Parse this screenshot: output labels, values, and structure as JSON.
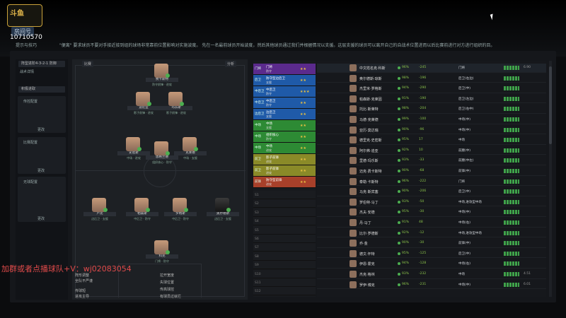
{
  "stream": {
    "logo_text": "斗鱼",
    "room_label": "房间号",
    "room_number": "10710570",
    "overlay_text": "加群或者点播球队+V：wj02083054"
  },
  "tip": {
    "label": "提示与技巧",
    "text": "\"便离\" 要求球员不要对手接近接到组的球场非常靠前位置影响对实施波度。 先在一名最前球员开始波度，然后其他球员通过我们并根据情况以支援。这层支援的球员可以离开自己的自战术位置进而以后比赛前进行对方进行组织的目。"
  },
  "left_panel": {
    "formation": "阵型进阶4-3-2-1 防御",
    "section1": "战术详情",
    "mentality": "积极进取",
    "box1_title": "传控配置",
    "box1_button": "更改",
    "box2_title": "比赛配置",
    "box2_button": "更改",
    "box3_title": "无球配置",
    "box3_button": "更改"
  },
  "pitch": {
    "controls": [
      "分析",
      "比赛"
    ],
    "players": [
      {
        "name": "费卡斯特",
        "role": "防守前锋 · 进攻",
        "dark": false
      },
      {
        "name": "迪尼亚",
        "role": "影子前锋 · 进攻",
        "dark": false
      },
      {
        "name": "玛乐斯",
        "role": "影子前锋 · 进攻",
        "dark": false
      },
      {
        "name": "史密斯",
        "role": "中场 · 进攻",
        "dark": false
      },
      {
        "name": "恩格兰德",
        "role": "组织核心 · 防守",
        "dark": false
      },
      {
        "name": "克莱德",
        "role": "中场 · 支援",
        "dark": false
      },
      {
        "name": "卢克",
        "role": "边后卫 · 支援",
        "dark": false
      },
      {
        "name": "帕森斯",
        "role": "中后卫 · 防守",
        "dark": false
      },
      {
        "name": "罗格斯",
        "role": "中后卫 · 防守",
        "dark": false
      },
      {
        "name": "奥尔德斯",
        "role": "边后卫 · 支援",
        "dark": true
      },
      {
        "name": "科克",
        "role": "门将 · 防守",
        "dark": false
      }
    ],
    "footer": [
      "阵形调整",
      "全队不严谨",
      "传球短",
      "进攻主导",
      "拉开宽度",
      "失球位置",
      "传高球控",
      "有球员过就拦"
    ]
  },
  "tactic_rows": [
    {
      "pos": "门将",
      "role": "门将",
      "duty": "防守",
      "stars": "★★",
      "color": "#5b2a8c"
    },
    {
      "pos": "后卫",
      "role": "防守型边后卫",
      "duty": "支援",
      "stars": "★★",
      "color": "#1f5aa8"
    },
    {
      "pos": "中后卫",
      "role": "中后卫",
      "duty": "防守",
      "stars": "★★★",
      "color": "#1f5aa8"
    },
    {
      "pos": "中后卫",
      "role": "中后卫",
      "duty": "防守",
      "stars": "★★",
      "color": "#1f5aa8"
    },
    {
      "pos": "边后卫",
      "role": "边后卫",
      "duty": "支援",
      "stars": "★★",
      "color": "#1f5aa8"
    },
    {
      "pos": "中场",
      "role": "中场",
      "duty": "支援",
      "stars": "★★",
      "color": "#2d8a34"
    },
    {
      "pos": "中场",
      "role": "组织核心",
      "duty": "防守",
      "stars": "★★",
      "color": "#2d8a34"
    },
    {
      "pos": "中场",
      "role": "中场",
      "duty": "进攻",
      "stars": "★★",
      "color": "#2d8a34"
    },
    {
      "pos": "前卫",
      "role": "影子前锋",
      "duty": "进攻",
      "stars": "★★",
      "color": "#8a8a28"
    },
    {
      "pos": "前卫",
      "role": "影子前锋",
      "duty": "进攻",
      "stars": "★★",
      "color": "#8a8a28"
    },
    {
      "pos": "前锋",
      "role": "防守型前锋",
      "duty": "进攻",
      "stars": "★★",
      "color": "#a8402a"
    }
  ],
  "slots": [
    "S1",
    "S2",
    "S3",
    "S4",
    "S5",
    "S6",
    "S7",
    "S8",
    "S9",
    "S10",
    "S11",
    "S12"
  ],
  "squad": [
    {
      "name": "中文姓名克·科斯",
      "pct": "96%",
      "val": "-245",
      "pos": "门将",
      "num": "6.90"
    },
    {
      "name": "奥尔德斯·琼斯",
      "pct": "98%",
      "val": "-196",
      "pos": "后卫(右边)",
      "num": ""
    },
    {
      "name": "杰里米·罗格斯",
      "pct": "94%",
      "val": "-290",
      "pos": "后卫(中)",
      "num": ""
    },
    {
      "name": "帕森斯·克莱因",
      "pct": "91%",
      "val": "-190",
      "pos": "后卫(左边)",
      "num": ""
    },
    {
      "name": "托比·斯莱特",
      "pct": "98%",
      "val": "-204",
      "pos": "后卫(右中)",
      "num": ""
    },
    {
      "name": "马德·克莱德",
      "pct": "99%",
      "val": "-100",
      "pos": "中场(中)",
      "num": ""
    },
    {
      "name": "亚历·莫达瑞",
      "pct": "90%",
      "val": "-96",
      "pos": "中场(中)",
      "num": ""
    },
    {
      "name": "德里克·史密斯",
      "pct": "95%",
      "val": "17",
      "pos": "中场",
      "num": ""
    },
    {
      "name": "阿尔弗·迪亚",
      "pct": "92%",
      "val": "10",
      "pos": "前腰(中)",
      "num": ""
    },
    {
      "name": "里德·玛乐斯",
      "pct": "93%",
      "val": "-33",
      "pos": "前腰(中左)",
      "num": ""
    },
    {
      "name": "迈克·费卡斯特",
      "pct": "90%",
      "val": "-68",
      "pos": "前锋(中)",
      "num": ""
    },
    {
      "name": "泰勒·卡斯特",
      "pct": "96%",
      "val": "-222",
      "pos": "门将",
      "num": ""
    },
    {
      "name": "马克·斯宾塞",
      "pct": "90%",
      "val": "-206",
      "pos": "后卫(中)",
      "num": ""
    },
    {
      "name": "罗伯特·马丁",
      "pct": "93%",
      "val": "-50",
      "pos": "中场,进攻型中场",
      "num": ""
    },
    {
      "name": "杰夫·安德",
      "pct": "95%",
      "val": "-30",
      "pos": "中场(中)",
      "num": ""
    },
    {
      "name": "丹·马丁",
      "pct": "91%",
      "val": "48",
      "pos": "中场(右)",
      "num": ""
    },
    {
      "name": "比尔·罗德斯",
      "pct": "92%",
      "val": "-12",
      "pos": "中场,进攻型中场",
      "num": ""
    },
    {
      "name": "乔·金",
      "pct": "90%",
      "val": "-30",
      "pos": "前锋(中)",
      "num": ""
    },
    {
      "name": "德文·怀特",
      "pct": "95%",
      "val": "-125",
      "pos": "后卫(中)",
      "num": ""
    },
    {
      "name": "伊恩·霍克",
      "pct": "94%",
      "val": "-128",
      "pos": "中场(右)",
      "num": ""
    },
    {
      "name": "杰克·格林",
      "pct": "93%",
      "val": "-232",
      "pos": "中场",
      "num": "4.51"
    },
    {
      "name": "罗伊·博克",
      "pct": "96%",
      "val": "-231",
      "pos": "中场(中)",
      "num": "6.01"
    }
  ]
}
